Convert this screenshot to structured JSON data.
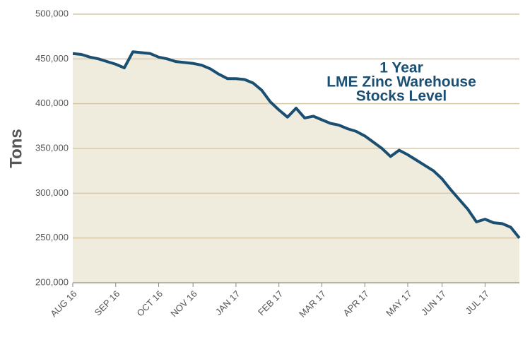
{
  "chart_data": {
    "type": "area",
    "title": [
      "1 Year",
      "LME Zinc Warehouse",
      "Stocks Level"
    ],
    "y_label": "Tons",
    "categories": [
      "AUG 16",
      null,
      null,
      null,
      null,
      "SEP 16",
      null,
      null,
      null,
      null,
      "OCT 16",
      null,
      null,
      null,
      "NOV 16",
      null,
      null,
      null,
      null,
      "JAN 17",
      null,
      null,
      null,
      null,
      "FEB 17",
      null,
      null,
      null,
      null,
      "MAR 17",
      null,
      null,
      null,
      null,
      "APR 17",
      null,
      null,
      null,
      null,
      "MAY 17",
      null,
      null,
      null,
      "JUN 17",
      null,
      null,
      null,
      null,
      "JUL 17",
      null,
      null,
      null,
      null
    ],
    "values": [
      456000,
      455000,
      452000,
      450000,
      447000,
      444000,
      440000,
      458000,
      457000,
      456000,
      452000,
      450000,
      447000,
      446000,
      445000,
      443000,
      439000,
      433000,
      428000,
      428000,
      427000,
      423000,
      415000,
      402000,
      393000,
      385000,
      395000,
      384000,
      386000,
      382000,
      378000,
      376000,
      372000,
      369000,
      364000,
      357000,
      350000,
      341000,
      348000,
      343000,
      337000,
      331000,
      325000,
      316000,
      304000,
      293000,
      282000,
      268000,
      271000,
      267000,
      266000,
      262000,
      250000
    ],
    "color": "#1b4f72",
    "fill": "#efebdd",
    "grid_color": "#d9c9a8",
    "ylim": [
      200000,
      500000
    ],
    "yticks": [
      {
        "value": 200000,
        "label": "200,000"
      },
      {
        "value": 250000,
        "label": "250,000"
      },
      {
        "value": 300000,
        "label": "300,000"
      },
      {
        "value": 350000,
        "label": "350,000"
      },
      {
        "value": 400000,
        "label": "400,000"
      },
      {
        "value": 450000,
        "label": "450,000"
      },
      {
        "value": 500000,
        "label": "500,000"
      }
    ],
    "grid": true
  }
}
